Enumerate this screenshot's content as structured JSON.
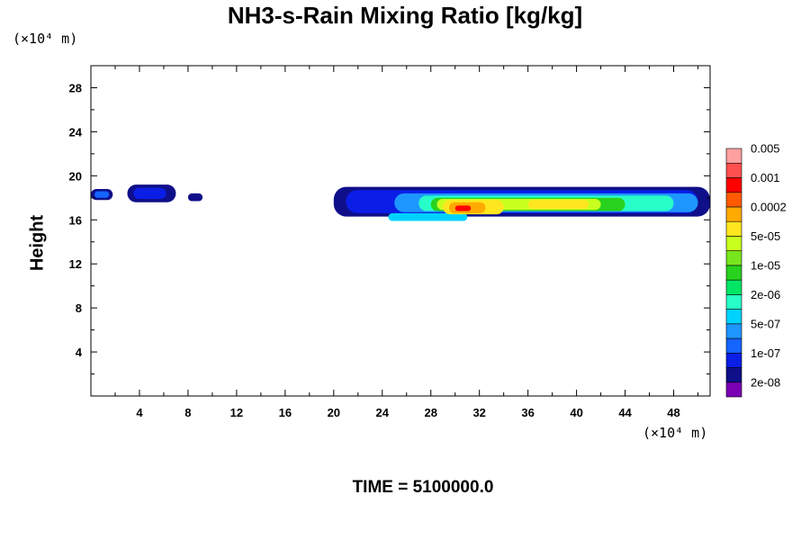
{
  "chart_data": {
    "type": "heatmap",
    "title": "NH3-s-Rain Mixing Ratio [kg/kg]",
    "ylabel": "Height",
    "xlabel": "",
    "x_unit_label": "(×10⁴ m)",
    "y_unit_label": "(×10⁴ m)",
    "xlim": [
      0,
      51
    ],
    "ylim": [
      0,
      30
    ],
    "x_ticks": [
      4,
      8,
      12,
      16,
      20,
      24,
      28,
      32,
      36,
      40,
      44,
      48
    ],
    "y_ticks": [
      4,
      8,
      12,
      16,
      20,
      24,
      28
    ],
    "footer": "TIME = 5100000.0",
    "colorbar": {
      "colors": [
        "#7a00b4",
        "#0f0f8a",
        "#0a1ee6",
        "#1464ff",
        "#1e96ff",
        "#00d2ff",
        "#28ffc8",
        "#00e664",
        "#28d21e",
        "#78e61e",
        "#c8ff1e",
        "#ffe61e",
        "#ffaa00",
        "#ff5a00",
        "#ff0000",
        "#ff5050",
        "#ffa0a0"
      ],
      "labels": [
        "2e-08",
        "1e-07",
        "5e-07",
        "2e-06",
        "1e-05",
        "5e-05",
        "0.0002",
        "0.001",
        "0.005"
      ]
    },
    "regions": [
      {
        "x": [
          0,
          1.8
        ],
        "y": [
          17.8,
          18.8
        ],
        "level": 1
      },
      {
        "x": [
          0.3,
          1.5
        ],
        "y": [
          18.0,
          18.6
        ],
        "level": 3
      },
      {
        "x": [
          3,
          7
        ],
        "y": [
          17.6,
          19.2
        ],
        "level": 1
      },
      {
        "x": [
          3.5,
          6.2
        ],
        "y": [
          17.9,
          18.9
        ],
        "level": 2
      },
      {
        "x": [
          8,
          9.2
        ],
        "y": [
          17.7,
          18.4
        ],
        "level": 1
      },
      {
        "x": [
          20,
          51
        ],
        "y": [
          16.3,
          19.0
        ],
        "level": 1
      },
      {
        "x": [
          21,
          50
        ],
        "y": [
          16.6,
          18.7
        ],
        "level": 2
      },
      {
        "x": [
          24.5,
          31
        ],
        "y": [
          15.9,
          16.6
        ],
        "level": 5
      },
      {
        "x": [
          25,
          50
        ],
        "y": [
          16.7,
          18.4
        ],
        "level": 4
      },
      {
        "x": [
          27,
          48
        ],
        "y": [
          16.8,
          18.2
        ],
        "level": 6
      },
      {
        "x": [
          28,
          44
        ],
        "y": [
          16.8,
          18.0
        ],
        "level": 8
      },
      {
        "x": [
          28.5,
          42
        ],
        "y": [
          16.9,
          17.9
        ],
        "level": 10
      },
      {
        "x": [
          29,
          34
        ],
        "y": [
          16.5,
          17.8
        ],
        "level": 11
      },
      {
        "x": [
          29.5,
          32.5
        ],
        "y": [
          16.6,
          17.6
        ],
        "level": 12
      },
      {
        "x": [
          30,
          31.3
        ],
        "y": [
          16.8,
          17.3
        ],
        "level": 14
      },
      {
        "x": [
          36,
          41
        ],
        "y": [
          17.0,
          17.8
        ],
        "level": 11
      }
    ]
  }
}
